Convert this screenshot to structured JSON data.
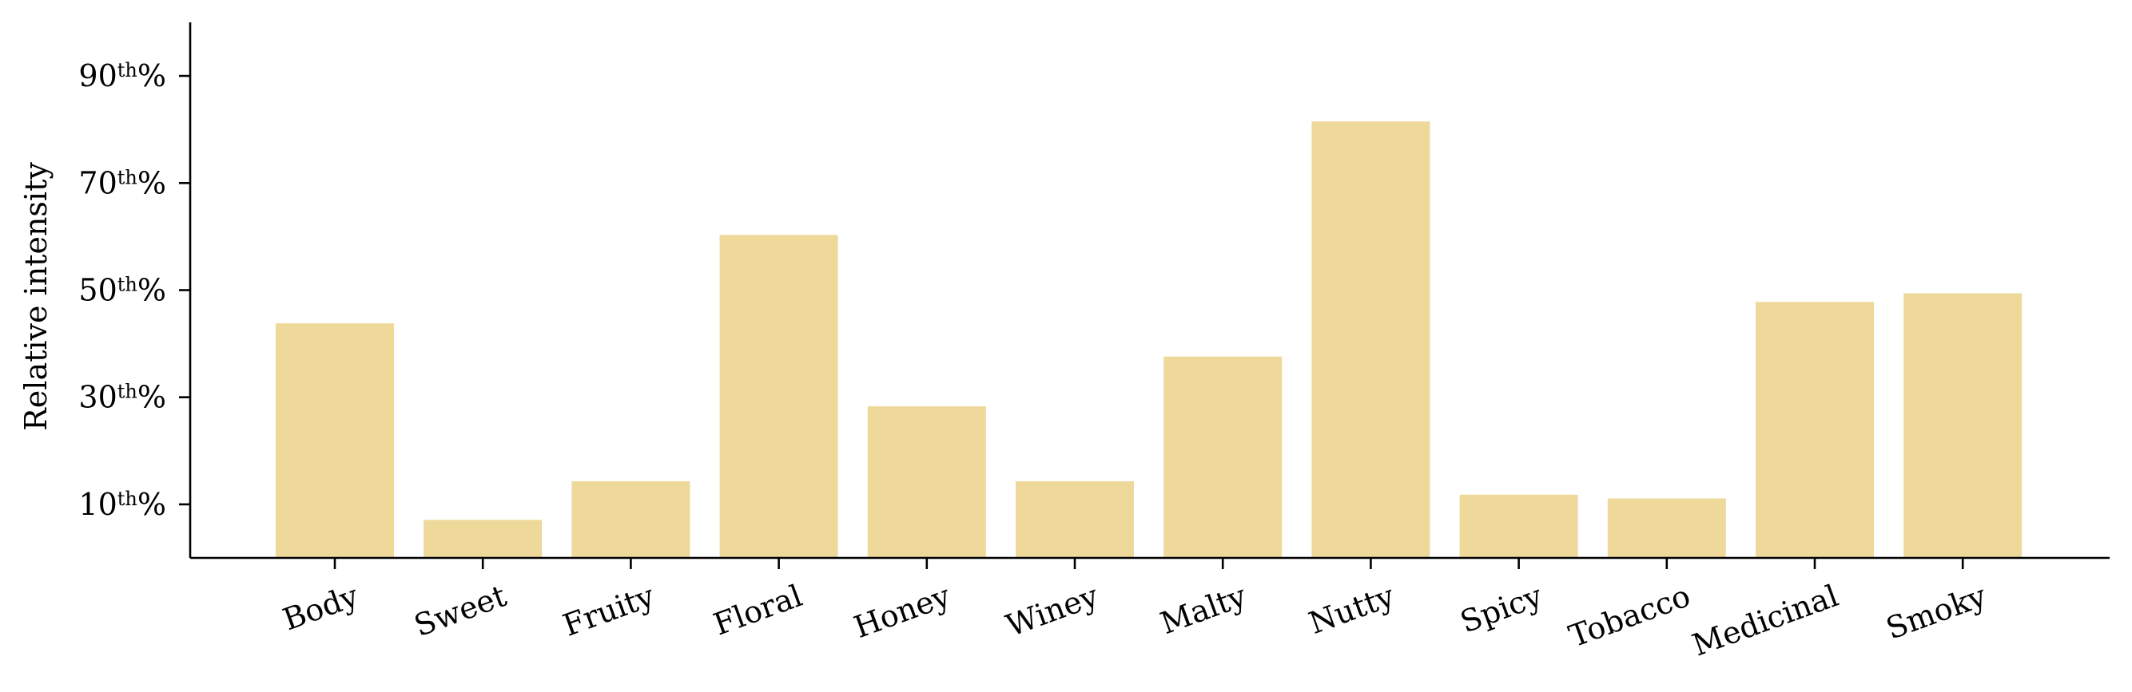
{
  "chart_data": {
    "type": "bar",
    "title": "",
    "xlabel": "",
    "ylabel": "Relative intensity",
    "categories": [
      "Body",
      "Sweet",
      "Fruity",
      "Floral",
      "Honey",
      "Winey",
      "Malty",
      "Nutty",
      "Spicy",
      "Tobacco",
      "Medicinal",
      "Smoky"
    ],
    "values": [
      43.8,
      7.1,
      14.3,
      60.3,
      28.3,
      14.3,
      37.6,
      81.5,
      11.8,
      11.1,
      47.8,
      49.4
    ],
    "ylim": [
      0,
      100
    ],
    "yticks": [
      {
        "value": 10,
        "main": "10",
        "sup": "th",
        "suffix": "%"
      },
      {
        "value": 30,
        "main": "30",
        "sup": "th",
        "suffix": "%"
      },
      {
        "value": 50,
        "main": "50",
        "sup": "th",
        "suffix": "%"
      },
      {
        "value": 70,
        "main": "70",
        "sup": "th",
        "suffix": "%"
      },
      {
        "value": 90,
        "main": "90",
        "sup": "th",
        "suffix": "%"
      }
    ],
    "bar_color": "#eed99a",
    "axis_color": "#000000",
    "grid": false,
    "legend": "none",
    "tick_label_rotation": 20
  }
}
